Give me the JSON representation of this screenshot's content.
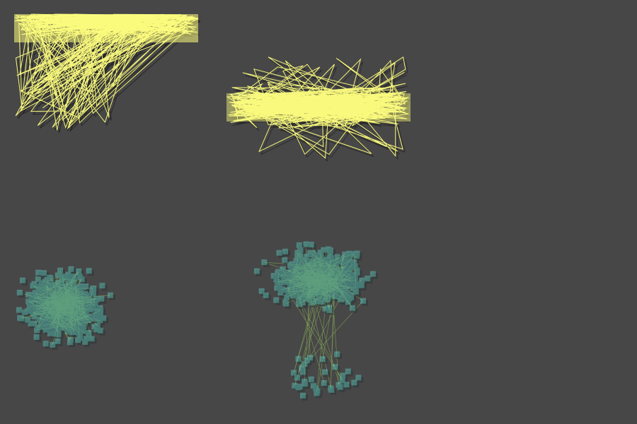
{
  "canvas": {
    "background": "#474747"
  },
  "panels": [
    {
      "id": "yellow-lines-top-left",
      "style": "yellow-lines",
      "line_color": "#ffff80",
      "shadow_color": "#1a1a1a",
      "anchor": "top-left"
    },
    {
      "id": "yellow-lines-band",
      "style": "yellow-band",
      "line_color": "#ffff80",
      "shadow_color": "#1a1a1a",
      "anchor": "middle-band"
    },
    {
      "id": "cyan-squares-left",
      "style": "cyan-squares",
      "square_color": "#66ffee",
      "line_color": "#a8d860",
      "anchor": "left-heavy"
    },
    {
      "id": "cyan-squares-top",
      "style": "cyan-squares",
      "square_color": "#66ffee",
      "line_color": "#a8d860",
      "anchor": "top-heavy"
    }
  ]
}
